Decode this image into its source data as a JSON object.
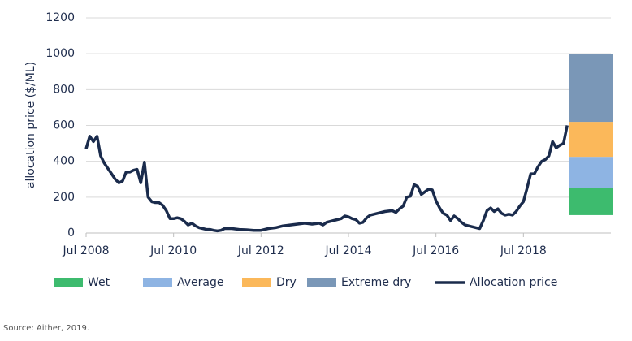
{
  "chart_data": {
    "type": "line",
    "y_label": "allocation price ($/ML)",
    "ylim": [
      0,
      1200
    ],
    "yticks": [
      0,
      200,
      400,
      600,
      800,
      1000,
      1200
    ],
    "xlim": [
      "Jul 2008",
      "Jul 2020"
    ],
    "xticks": [
      "Jul 2008",
      "Jul 2010",
      "Jul 2012",
      "Jul 2014",
      "Jul 2016",
      "Jul 2018"
    ],
    "grid": true,
    "series": [
      {
        "name": "Allocation price",
        "color": "#1a2b4c",
        "x": [
          "Jul 2008",
          "Aug 2008",
          "Sep 2008",
          "Oct 2008",
          "Nov 2008",
          "Dec 2008",
          "Jan 2009",
          "Feb 2009",
          "Mar 2009",
          "Apr 2009",
          "May 2009",
          "Jun 2009",
          "Jul 2009",
          "Aug 2009",
          "Sep 2009",
          "Oct 2009",
          "Nov 2009",
          "Dec 2009",
          "Jan 2010",
          "Feb 2010",
          "Mar 2010",
          "Apr 2010",
          "May 2010",
          "Jun 2010",
          "Jul 2010",
          "Aug 2010",
          "Sep 2010",
          "Oct 2010",
          "Nov 2010",
          "Dec 2010",
          "Jan 2011",
          "Feb 2011",
          "Mar 2011",
          "Apr 2011",
          "May 2011",
          "Jun 2011",
          "Jul 2011",
          "Aug 2011",
          "Sep 2011",
          "Nov 2011",
          "Jan 2012",
          "Mar 2012",
          "May 2012",
          "Jul 2012",
          "Sep 2012",
          "Nov 2012",
          "Jan 2013",
          "Mar 2013",
          "May 2013",
          "Jul 2013",
          "Sep 2013",
          "Nov 2013",
          "Dec 2013",
          "Jan 2014",
          "Mar 2014",
          "May 2014",
          "Jun 2014",
          "Jul 2014",
          "Aug 2014",
          "Sep 2014",
          "Oct 2014",
          "Nov 2014",
          "Dec 2014",
          "Jan 2015",
          "Mar 2015",
          "May 2015",
          "Jul 2015",
          "Aug 2015",
          "Sep 2015",
          "Oct 2015",
          "Nov 2015",
          "Dec 2015",
          "Jan 2016",
          "Feb 2016",
          "Mar 2016",
          "Apr 2016",
          "May 2016",
          "Jun 2016",
          "Jul 2016",
          "Aug 2016",
          "Sep 2016",
          "Oct 2016",
          "Nov 2016",
          "Dec 2016",
          "Jan 2017",
          "Feb 2017",
          "Mar 2017",
          "Apr 2017",
          "May 2017",
          "Jun 2017",
          "Jul 2017",
          "Aug 2017",
          "Sep 2017",
          "Oct 2017",
          "Nov 2017",
          "Dec 2017",
          "Jan 2018",
          "Feb 2018",
          "Mar 2018",
          "Apr 2018",
          "May 2018",
          "Jun 2018",
          "Jul 2018",
          "Aug 2018",
          "Sep 2018",
          "Oct 2018",
          "Nov 2018",
          "Dec 2018",
          "Jan 2019",
          "Feb 2019",
          "Mar 2019",
          "Apr 2019",
          "May 2019",
          "Jun 2019",
          "Jul 2019"
        ],
        "values": [
          470,
          540,
          510,
          540,
          430,
          390,
          360,
          330,
          300,
          280,
          290,
          340,
          340,
          350,
          355,
          280,
          395,
          200,
          175,
          170,
          170,
          155,
          125,
          80,
          80,
          85,
          80,
          65,
          45,
          55,
          40,
          30,
          25,
          20,
          20,
          15,
          12,
          15,
          25,
          25,
          20,
          18,
          15,
          15,
          25,
          30,
          40,
          45,
          50,
          55,
          50,
          55,
          45,
          60,
          70,
          80,
          95,
          90,
          80,
          75,
          55,
          60,
          85,
          100,
          110,
          120,
          125,
          115,
          135,
          150,
          200,
          205,
          270,
          260,
          215,
          230,
          245,
          240,
          180,
          140,
          110,
          100,
          70,
          95,
          80,
          60,
          45,
          40,
          35,
          30,
          25,
          70,
          125,
          140,
          120,
          135,
          110,
          100,
          105,
          100,
          120,
          150,
          175,
          250,
          330,
          330,
          370,
          400,
          410,
          430,
          510,
          475,
          490,
          500,
          600
        ]
      }
    ],
    "ranges": [
      {
        "name": "Wet",
        "color": "#3dbb6e",
        "range": [
          100,
          250
        ]
      },
      {
        "name": "Average",
        "color": "#8eb4e3",
        "range": [
          250,
          425
        ]
      },
      {
        "name": "Dry",
        "color": "#fbb85a",
        "range": [
          425,
          620
        ]
      },
      {
        "name": "Extreme dry",
        "color": "#7a97b7",
        "range": [
          620,
          1000
        ]
      }
    ],
    "source": "Source: Aither, 2019."
  }
}
